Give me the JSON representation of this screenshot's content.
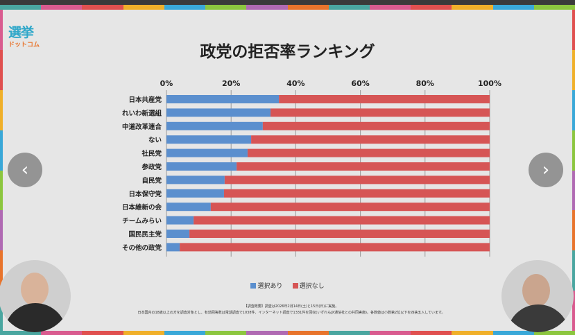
{
  "logo": {
    "line1": "選挙",
    "line2": "ドットコム"
  },
  "nav": {
    "prev": "‹",
    "next": "›"
  },
  "colors": {
    "blue": "#5b8fce",
    "red": "#d65555"
  },
  "chart_data": {
    "type": "bar",
    "stacked": true,
    "orientation": "horizontal",
    "title": "政党の拒否率ランキング",
    "xlim": [
      0,
      100
    ],
    "xticks": [
      "0%",
      "20%",
      "40%",
      "60%",
      "80%",
      "100%"
    ],
    "categories": [
      "日本共産党",
      "れいわ新選組",
      "中道改革連合",
      "ない",
      "社民党",
      "参政党",
      "自民党",
      "日本保守党",
      "日本維新の会",
      "チームみらい",
      "国民民主党",
      "その他の政党"
    ],
    "series": [
      {
        "name": "選択あり",
        "values": [
          34.8,
          32.2,
          29.8,
          26.2,
          25.1,
          21.7,
          18.0,
          17.8,
          13.7,
          8.4,
          7.1,
          4.1
        ]
      },
      {
        "name": "選択なし",
        "values": [
          65.2,
          67.8,
          70.2,
          73.8,
          74.9,
          78.3,
          82.0,
          82.2,
          86.3,
          91.6,
          92.9,
          95.9
        ]
      }
    ],
    "legend": "bottom",
    "grid": true
  },
  "notes": [
    "【調査概要】調査は2026年2月14日(土)と15日(日)に実施。",
    "日本国内の18歳以上の方を調査対象とし、有効回答数は電話調査で1038件、インターネット調査で1331件を回収(いずれもJX通信社との共同実施)。各数値は小数第2位以下を四捨五入しています。"
  ]
}
